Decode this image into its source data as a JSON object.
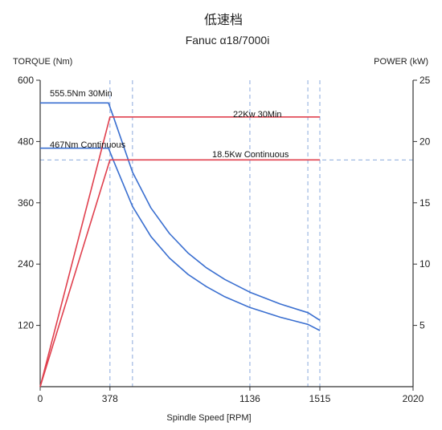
{
  "chart_data": {
    "type": "line",
    "title": "低速档",
    "subtitle": "Fanuc α18/7000i",
    "xlabel": "Spindle Speed [RPM]",
    "ylabel_left": "TORQUE (Nm)",
    "ylabel_right": "POWER (kW)",
    "xlim": [
      0,
      2020
    ],
    "ylim_left": [
      0,
      600
    ],
    "ylim_right": [
      0,
      25
    ],
    "x_ticks": [
      0,
      378,
      1136,
      1515,
      2020
    ],
    "x_tick_labels": [
      "0",
      "378",
      "1136",
      "1515",
      "2020"
    ],
    "y_left_ticks": [
      120,
      240,
      360,
      480,
      600
    ],
    "y_left_tick_labels": [
      "120",
      "240",
      "360",
      "480",
      "600"
    ],
    "y_right_ticks": [
      5,
      10,
      15,
      20,
      25
    ],
    "y_right_tick_labels": [
      "5",
      "10",
      "15",
      "20",
      "25"
    ],
    "grid_x": [
      378,
      500,
      1136,
      1450,
      1515
    ],
    "grid_y_right": [
      18.5
    ],
    "torque_unit_note": "",
    "colors": {
      "torque": "#3a6fd0",
      "power": "#e0404e",
      "grid": "#8aa9dc",
      "axis": "#333333"
    },
    "series": [
      {
        "name": "555.5Nm 30Min",
        "axis": "left",
        "kind": "torque",
        "x": [
          0,
          370,
          400,
          500,
          600,
          700,
          800,
          900,
          1000,
          1136,
          1300,
          1450,
          1515
        ],
        "values": [
          555.5,
          555.5,
          525,
          420,
          350,
          300,
          262,
          233,
          210,
          185,
          162,
          145,
          130
        ]
      },
      {
        "name": "467Nm Continuous",
        "axis": "left",
        "kind": "torque",
        "x": [
          0,
          370,
          400,
          500,
          600,
          700,
          800,
          900,
          1000,
          1136,
          1300,
          1450,
          1515
        ],
        "values": [
          467,
          467,
          440,
          353,
          294,
          252,
          220,
          196,
          176,
          155,
          136,
          122,
          110
        ]
      },
      {
        "name": "22Kw 30Min",
        "axis": "right",
        "kind": "power",
        "x": [
          0,
          378,
          1515
        ],
        "values": [
          0,
          22,
          22
        ]
      },
      {
        "name": "18.5Kw Continuous",
        "axis": "right",
        "kind": "power",
        "x": [
          0,
          378,
          1515
        ],
        "values": [
          0,
          18.5,
          18.5
        ]
      }
    ]
  }
}
